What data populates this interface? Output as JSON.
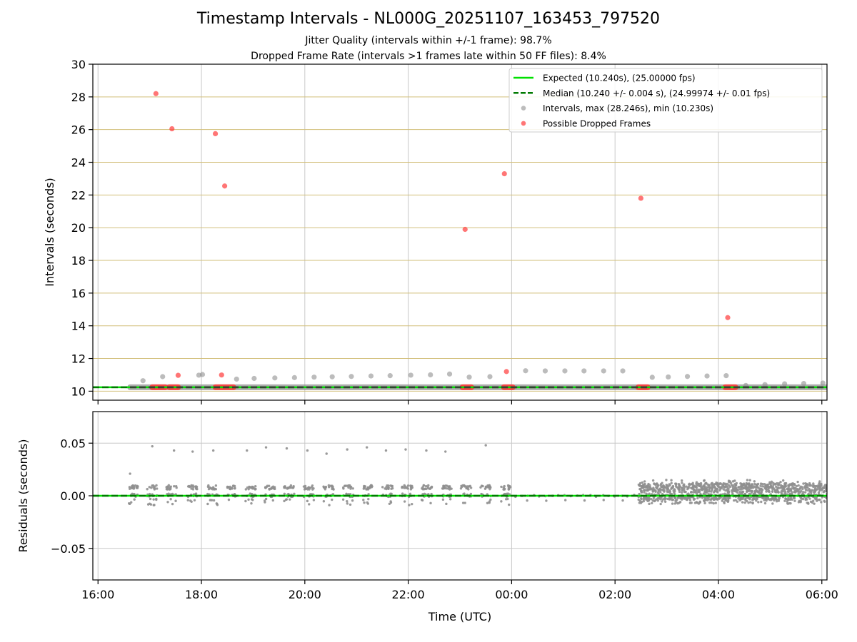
{
  "title": "Timestamp Intervals - NL000G_20251107_163453_797520",
  "subtitle_1": "Jitter Quality (intervals within +/-1 frame): 98.7%",
  "subtitle_2": "Dropped Frame Rate (intervals >1 frames late within 50 FF files): 8.4%",
  "colors": {
    "expected": "#00e000",
    "median": "#007a00",
    "interval": "#8f8f8f",
    "dropped": "#ff3b3b",
    "hgrid_top": "#d2bf7a",
    "grid": "#c8c8c8",
    "median_overlay": "#3a3a3a"
  },
  "chart_data": [
    {
      "id": "intervals",
      "type": "scatter",
      "ylabel": "Intervals (seconds)",
      "ylim": [
        9.45,
        30
      ],
      "yticks": [
        10,
        12,
        14,
        16,
        18,
        20,
        22,
        24,
        26,
        28,
        30
      ],
      "ytick_labels": [
        "10",
        "12",
        "14",
        "16",
        "18",
        "20",
        "22",
        "24",
        "26",
        "28",
        "30"
      ],
      "grid": true,
      "legend_position": "top-right",
      "legend": [
        {
          "label": "Expected (10.240s), (25.00000 fps)",
          "kind": "solid-line"
        },
        {
          "label": "Median (10.240 +/- 0.004 s), (24.99974 +/- 0.01 fps)",
          "kind": "dashed-line"
        },
        {
          "label": "Intervals, max (28.246s), min (10.230s)",
          "kind": "gray-dot"
        },
        {
          "label": "Possible Dropped Frames",
          "kind": "red-dot"
        }
      ],
      "expected": 10.24,
      "median": 10.24,
      "intervals_baseline_range_h": [
        16.62,
        30.2
      ],
      "intervals_outliers": [
        {
          "t": 16.87,
          "v": 10.64
        },
        {
          "t": 17.25,
          "v": 10.89
        },
        {
          "t": 17.95,
          "v": 10.98
        },
        {
          "t": 18.02,
          "v": 11.02
        },
        {
          "t": 18.68,
          "v": 10.74
        },
        {
          "t": 19.02,
          "v": 10.78
        },
        {
          "t": 19.42,
          "v": 10.81
        },
        {
          "t": 19.8,
          "v": 10.83
        },
        {
          "t": 20.18,
          "v": 10.86
        },
        {
          "t": 20.53,
          "v": 10.88
        },
        {
          "t": 20.9,
          "v": 10.9
        },
        {
          "t": 21.28,
          "v": 10.93
        },
        {
          "t": 21.65,
          "v": 10.95
        },
        {
          "t": 22.05,
          "v": 10.98
        },
        {
          "t": 22.43,
          "v": 11.0
        },
        {
          "t": 22.8,
          "v": 11.05
        },
        {
          "t": 23.18,
          "v": 10.86
        },
        {
          "t": 23.58,
          "v": 10.89
        },
        {
          "t": 24.27,
          "v": 11.25
        },
        {
          "t": 24.65,
          "v": 11.24
        },
        {
          "t": 25.03,
          "v": 11.24
        },
        {
          "t": 25.4,
          "v": 11.24
        },
        {
          "t": 25.78,
          "v": 11.24
        },
        {
          "t": 26.15,
          "v": 11.24
        },
        {
          "t": 26.72,
          "v": 10.85
        },
        {
          "t": 27.03,
          "v": 10.87
        },
        {
          "t": 27.4,
          "v": 10.9
        },
        {
          "t": 27.78,
          "v": 10.93
        },
        {
          "t": 28.15,
          "v": 10.95
        },
        {
          "t": 28.53,
          "v": 10.35
        },
        {
          "t": 28.9,
          "v": 10.4
        },
        {
          "t": 29.28,
          "v": 10.45
        },
        {
          "t": 29.65,
          "v": 10.47
        },
        {
          "t": 30.02,
          "v": 10.5
        }
      ],
      "dropped_frames": [
        {
          "t": 17.12,
          "v": 28.2
        },
        {
          "t": 17.43,
          "v": 26.05
        },
        {
          "t": 18.27,
          "v": 25.75
        },
        {
          "t": 18.45,
          "v": 22.55
        },
        {
          "t": 23.1,
          "v": 19.9
        },
        {
          "t": 23.86,
          "v": 23.3
        },
        {
          "t": 26.5,
          "v": 21.8
        },
        {
          "t": 28.18,
          "v": 14.5
        },
        {
          "t": 17.55,
          "v": 10.97
        },
        {
          "t": 18.39,
          "v": 10.99
        },
        {
          "t": 23.9,
          "v": 11.2
        }
      ],
      "dropped_clusters_h": [
        [
          17.05,
          17.3
        ],
        [
          17.38,
          17.55
        ],
        [
          18.27,
          18.62
        ],
        [
          23.05,
          23.22
        ],
        [
          23.85,
          24.02
        ],
        [
          26.45,
          26.63
        ],
        [
          28.13,
          28.33
        ]
      ]
    },
    {
      "id": "residuals",
      "type": "scatter",
      "xlabel": "Time (UTC)",
      "ylabel": "Residuals (seconds)",
      "xlim_h": [
        15.9,
        30.1
      ],
      "xticks_h": [
        16,
        18,
        20,
        22,
        24,
        26,
        28,
        30
      ],
      "xtick_labels": [
        "16:00",
        "18:00",
        "20:00",
        "22:00",
        "00:00",
        "02:00",
        "04:00",
        "06:00"
      ],
      "ylim": [
        -0.08,
        0.08
      ],
      "yticks": [
        -0.05,
        0.0,
        0.05
      ],
      "ytick_labels": [
        "−0.05",
        "0.00",
        "0.05"
      ],
      "grid": true,
      "expected": 0.0,
      "median": 0.0,
      "high_residuals": [
        {
          "t": 16.62,
          "v": 0.021
        },
        {
          "t": 17.05,
          "v": 0.047
        },
        {
          "t": 17.47,
          "v": 0.043
        },
        {
          "t": 17.83,
          "v": 0.042
        },
        {
          "t": 18.23,
          "v": 0.043
        },
        {
          "t": 18.88,
          "v": 0.043
        },
        {
          "t": 19.25,
          "v": 0.046
        },
        {
          "t": 19.65,
          "v": 0.045
        },
        {
          "t": 20.05,
          "v": 0.043
        },
        {
          "t": 20.42,
          "v": 0.04
        },
        {
          "t": 20.82,
          "v": 0.044
        },
        {
          "t": 21.2,
          "v": 0.046
        },
        {
          "t": 21.57,
          "v": 0.043
        },
        {
          "t": 21.95,
          "v": 0.044
        },
        {
          "t": 22.35,
          "v": 0.043
        },
        {
          "t": 22.72,
          "v": 0.042
        },
        {
          "t": 23.5,
          "v": 0.048
        }
      ],
      "residual_groups_h": [
        [
          16.6,
          16.78
        ],
        [
          16.95,
          17.15
        ],
        [
          17.32,
          17.52
        ],
        [
          17.72,
          17.92
        ],
        [
          18.12,
          18.32
        ],
        [
          18.48,
          18.68
        ],
        [
          18.85,
          19.05
        ],
        [
          19.22,
          19.42
        ],
        [
          19.6,
          19.8
        ],
        [
          19.98,
          20.18
        ],
        [
          20.36,
          20.56
        ],
        [
          20.74,
          20.94
        ],
        [
          21.12,
          21.32
        ],
        [
          21.5,
          21.7
        ],
        [
          21.88,
          22.08
        ],
        [
          22.26,
          22.46
        ],
        [
          22.64,
          22.84
        ],
        [
          23.02,
          23.22
        ],
        [
          23.4,
          23.6
        ],
        [
          23.78,
          23.98
        ]
      ],
      "residual_dense_range_h": [
        26.45,
        30.1
      ]
    }
  ]
}
